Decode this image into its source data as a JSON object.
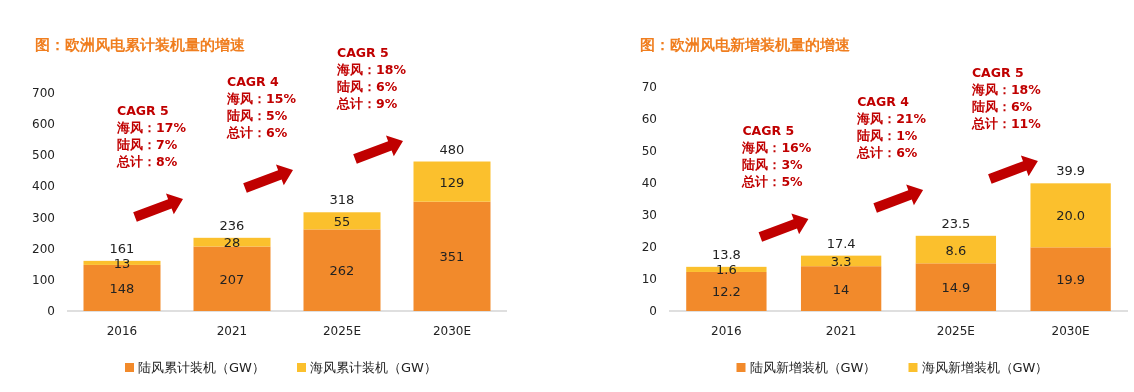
{
  "chart_data": [
    {
      "type": "bar",
      "title": "图：欧洲风电累计装机量的增速",
      "categories": [
        "2016",
        "2021",
        "2025E",
        "2030E"
      ],
      "stacked": true,
      "data_labels": true,
      "legend": "bottom",
      "ylim": [
        0,
        700
      ],
      "yticks": [
        0,
        100,
        200,
        300,
        400,
        500,
        600,
        700
      ],
      "totals": [
        "161",
        "236",
        "318",
        "480"
      ],
      "series": [
        {
          "name": "陆风累计装机（GW）",
          "color": "#f28a2b",
          "values": [
            148,
            207,
            262,
            351
          ]
        },
        {
          "name": "海风累计装机（GW）",
          "color": "#fbc02d",
          "values": [
            13,
            28,
            55,
            129
          ]
        }
      ],
      "annotations": [
        "CAGR 5",
        "海风：17%",
        "陆风：7%",
        "总计：8%",
        "CAGR 4",
        "海风：15%",
        "陆风：5%",
        "总计：6%",
        "CAGR 5",
        "海风：18%",
        "陆风：6%",
        "总计：9%"
      ]
    },
    {
      "type": "bar",
      "title": "图：欧洲风电新增装机量的增速",
      "categories": [
        "2016",
        "2021",
        "2025E",
        "2030E"
      ],
      "stacked": true,
      "legend": "bottom",
      "ylim": [
        0,
        70
      ],
      "yticks": [
        0,
        10,
        20,
        30,
        40,
        50,
        60,
        70
      ],
      "totals": [
        "13.8",
        "17.4",
        "23.5",
        "39.9"
      ],
      "series": [
        {
          "name": "陆风新增装机（GW）",
          "color": "#f28a2b",
          "values": [
            12.2,
            14,
            14.9,
            19.9
          ],
          "value_labels": [
            "12.2",
            "14",
            "14.9",
            "19.9"
          ]
        },
        {
          "name": "海风新增装机（GW）",
          "color": "#fbc02d",
          "values": [
            1.6,
            3.3,
            8.6,
            20.0
          ],
          "value_labels": [
            "1.6",
            "3.3",
            "8.6",
            "20.0"
          ]
        }
      ],
      "annotations": [
        "CAGR 5",
        "海风：16%",
        "陆风：3%",
        "总计：5%",
        "CAGR 4",
        "海风：21%",
        "陆风：1%",
        "总计：6%",
        "CAGR 5",
        "海风：18%",
        "陆风：6%",
        "总计：11%"
      ]
    }
  ]
}
